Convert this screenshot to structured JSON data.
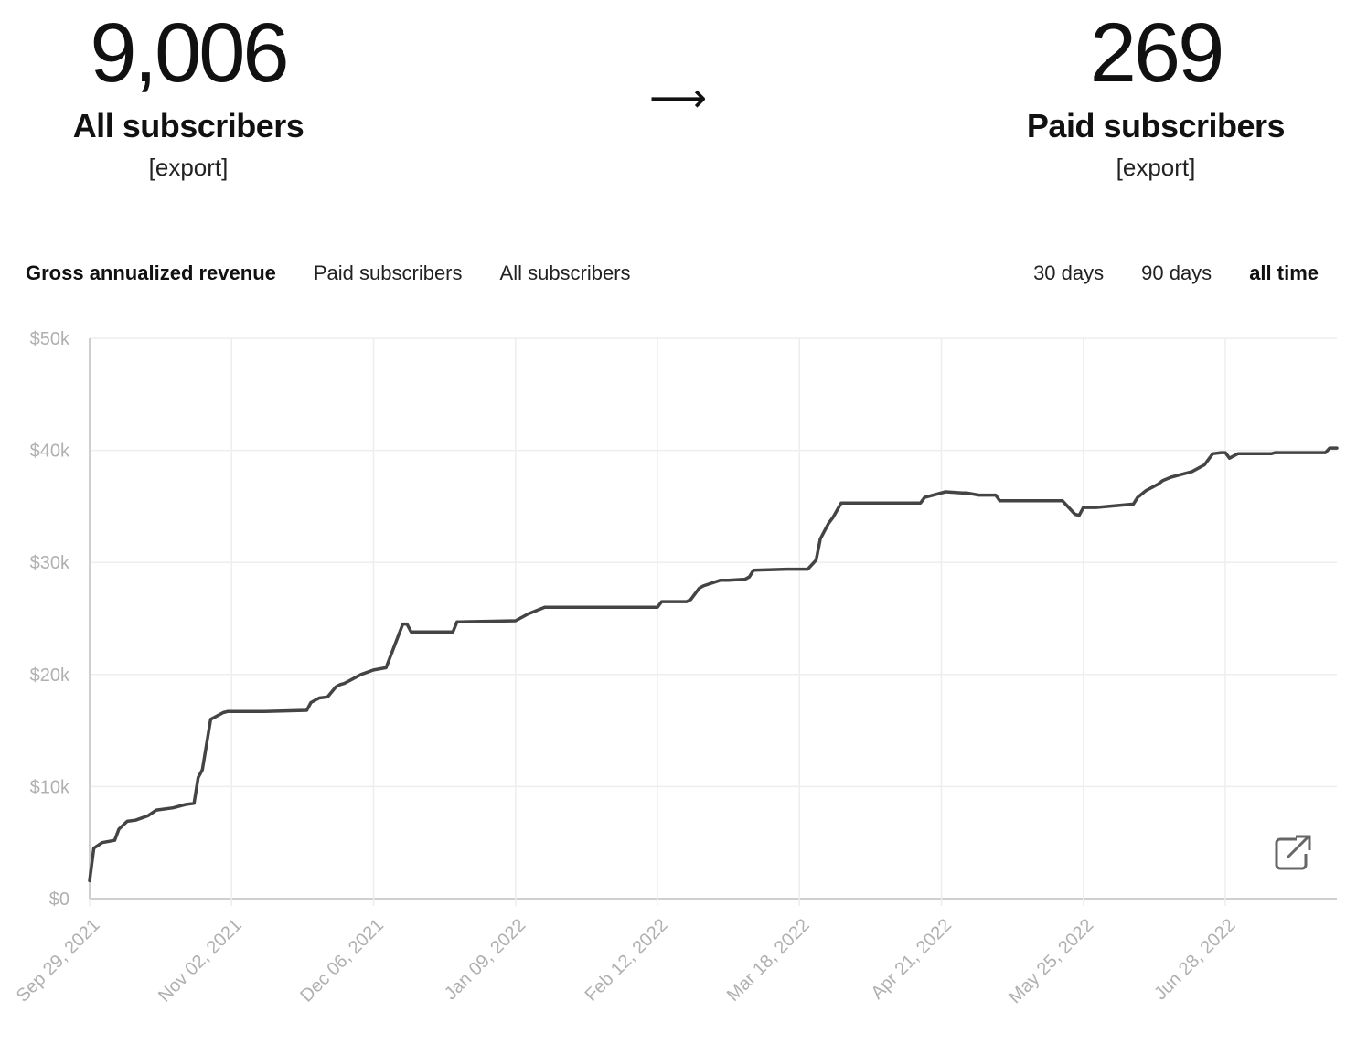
{
  "summary": {
    "all": {
      "count": "9,006",
      "label": "All subscribers",
      "export": "[export]"
    },
    "arrow": "⟶",
    "paid": {
      "count": "269",
      "label": "Paid subscribers",
      "export": "[export]"
    }
  },
  "tabs": [
    {
      "label": "Gross annualized revenue",
      "active": true
    },
    {
      "label": "Paid subscribers",
      "active": false
    },
    {
      "label": "All subscribers",
      "active": false
    }
  ],
  "ranges": [
    {
      "label": "30 days",
      "active": false
    },
    {
      "label": "90 days",
      "active": false
    },
    {
      "label": "all time",
      "active": true
    }
  ],
  "icons": {
    "popout": "external-link-icon"
  },
  "colors": {
    "line": "#444444",
    "grid": "#eeeeee",
    "axis_text": "#b0b0b0"
  },
  "chart_data": {
    "type": "line",
    "xlabel": "",
    "ylabel": "",
    "ylim": [
      0,
      50000
    ],
    "y_ticks": [
      "$0",
      "$10k",
      "$20k",
      "$30k",
      "$40k",
      "$50k"
    ],
    "x_ticks": [
      "Sep 29, 2021",
      "Nov 02, 2021",
      "Dec 06, 2021",
      "Jan 09, 2022",
      "Feb 12, 2022",
      "Mar 18, 2022",
      "Apr 21, 2022",
      "May 25, 2022",
      "Jun 28, 2022"
    ],
    "grid": true,
    "series": [
      {
        "x": [
          "2021-09-29",
          "2021-09-30",
          "2021-10-02",
          "2021-10-05",
          "2021-10-06",
          "2021-10-08",
          "2021-10-10",
          "2021-10-13",
          "2021-10-15",
          "2021-10-19",
          "2021-10-22",
          "2021-10-24",
          "2021-10-25",
          "2021-10-26",
          "2021-10-28",
          "2021-10-29",
          "2021-10-30",
          "2021-10-31",
          "2021-11-01",
          "2021-11-02",
          "2021-11-03",
          "2021-11-10",
          "2021-11-20",
          "2021-11-21",
          "2021-11-23",
          "2021-11-25",
          "2021-11-27",
          "2021-11-28",
          "2021-11-29",
          "2021-12-01",
          "2021-12-03",
          "2021-12-06",
          "2021-12-09",
          "2021-12-13",
          "2021-12-14",
          "2021-12-15",
          "2021-12-16",
          "2021-12-17",
          "2021-12-18",
          "2021-12-19",
          "2021-12-20",
          "2021-12-25",
          "2021-12-26",
          "2021-12-27",
          "2022-01-09",
          "2022-01-12",
          "2022-01-16",
          "2022-01-18",
          "2022-01-20",
          "2022-01-26",
          "2022-02-01",
          "2022-02-12",
          "2022-02-13",
          "2022-02-19",
          "2022-02-20",
          "2022-02-22",
          "2022-02-23",
          "2022-02-27",
          "2022-03-01",
          "2022-03-05",
          "2022-03-06",
          "2022-03-07",
          "2022-03-15",
          "2022-03-18",
          "2022-03-19",
          "2022-03-20",
          "2022-03-21",
          "2022-03-22",
          "2022-03-23",
          "2022-03-24",
          "2022-03-25",
          "2022-03-26",
          "2022-03-28",
          "2022-04-06",
          "2022-04-16",
          "2022-04-17",
          "2022-04-22",
          "2022-04-26",
          "2022-04-27",
          "2022-04-30",
          "2022-05-04",
          "2022-05-05",
          "2022-05-20",
          "2022-05-23",
          "2022-05-24",
          "2022-05-25",
          "2022-05-26",
          "2022-05-28",
          "2022-06-06",
          "2022-06-07",
          "2022-06-08",
          "2022-06-09",
          "2022-06-12",
          "2022-06-13",
          "2022-06-15",
          "2022-06-17",
          "2022-06-20",
          "2022-06-23",
          "2022-06-24",
          "2022-06-25",
          "2022-06-27",
          "2022-06-28",
          "2022-06-29",
          "2022-07-01",
          "2022-07-02",
          "2022-07-06",
          "2022-07-07",
          "2022-07-09",
          "2022-07-10",
          "2022-07-22",
          "2022-07-23",
          "2022-07-26"
        ],
        "values": [
          1600,
          4500,
          5000,
          5200,
          6200,
          6900,
          7000,
          7400,
          7900,
          8100,
          8400,
          8500,
          10800,
          11500,
          16000,
          16200,
          16400,
          16600,
          16700,
          16700,
          16700,
          16700,
          16800,
          17500,
          17900,
          18000,
          18900,
          19100,
          19200,
          19600,
          20000,
          20400,
          20600,
          24500,
          24500,
          23800,
          23800,
          23800,
          23800,
          23800,
          23800,
          23800,
          24700,
          24700,
          24800,
          25400,
          26000,
          26000,
          26000,
          26000,
          26000,
          26000,
          26500,
          26500,
          26700,
          27700,
          27900,
          28400,
          28400,
          28500,
          28700,
          29300,
          29400,
          29400,
          29400,
          29400,
          29800,
          30200,
          32100,
          32800,
          33500,
          34000,
          35300,
          35300,
          35300,
          35800,
          36300,
          36200,
          36200,
          36000,
          36000,
          35500,
          35500,
          34300,
          34200,
          34900,
          34900,
          34900,
          35200,
          35800,
          36100,
          36400,
          37000,
          37300,
          37600,
          37800,
          38100,
          38700,
          39200,
          39700,
          39800,
          39800,
          39300,
          39700,
          39700,
          39700,
          39700,
          39700,
          39800,
          39800,
          40200,
          40200
        ]
      }
    ]
  }
}
